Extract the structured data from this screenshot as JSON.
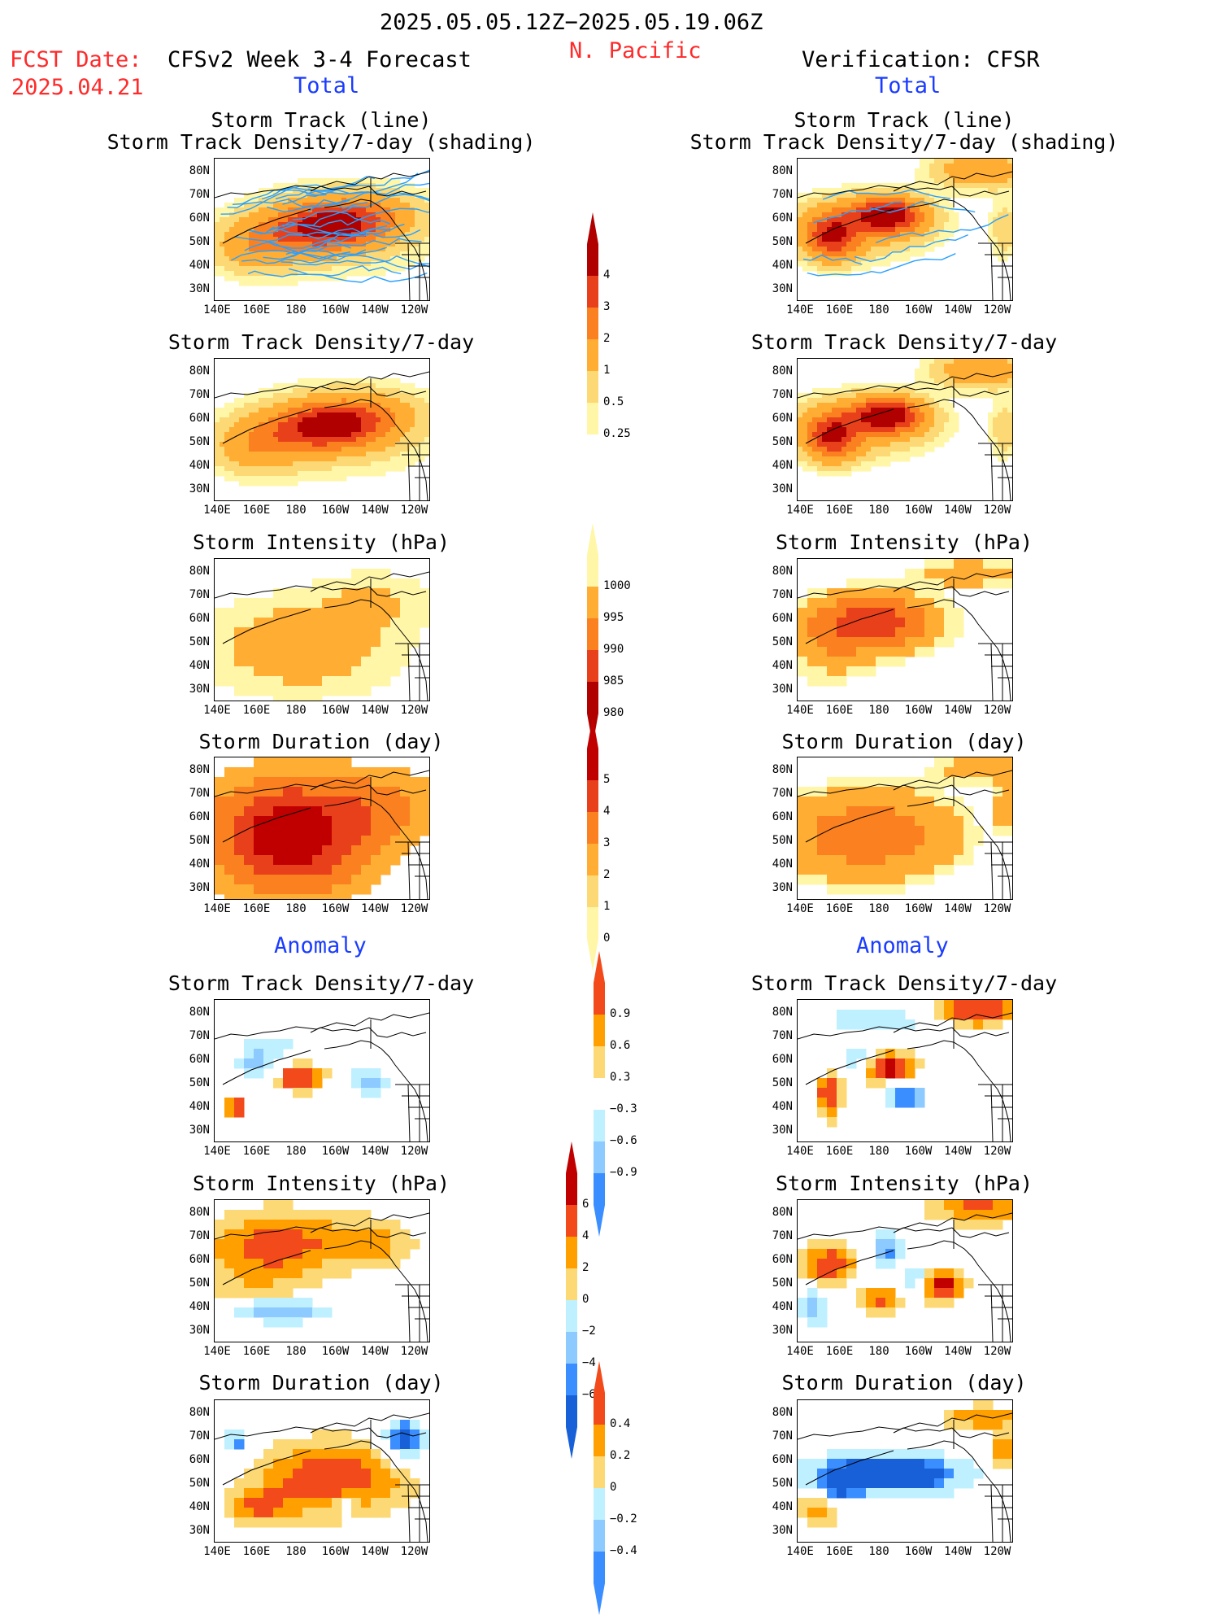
{
  "header": {
    "period": "2025.05.05.12Z−2025.05.19.06Z",
    "region": "N. Pacific",
    "fcst_label": "FCST Date:",
    "fcst_date": "2025.04.21",
    "left_title": "CFSv2 Week 3-4 Forecast",
    "right_title": "Verification: CFSR",
    "total_left": "Total",
    "total_right": "Total",
    "anomaly_left": "Anomaly",
    "anomaly_right": "Anomaly"
  },
  "titles": {
    "st_line": "Storm Track (line)",
    "st_shade": "Storm Track Density/7-day (shading)",
    "density": "Storm Track Density/7-day",
    "intensity": "Storm Intensity (hPa)",
    "duration": "Storm Duration (day)"
  },
  "axes": {
    "lat_ticks": [
      "80N",
      "70N",
      "60N",
      "50N",
      "40N",
      "30N"
    ],
    "lon_ticks": [
      "140E",
      "160E",
      "180",
      "160W",
      "140W",
      "120W"
    ]
  },
  "colorbars": {
    "density_total": [
      "4",
      "3",
      "2",
      "1",
      "0.5",
      "0.25"
    ],
    "intensity_total": [
      "1000",
      "995",
      "990",
      "985",
      "980"
    ],
    "duration_total": [
      "5",
      "4",
      "3",
      "2",
      "1",
      "0"
    ],
    "density_anom": [
      "0.9",
      "0.6",
      "0.3",
      "−0.3",
      "−0.6",
      "−0.9"
    ],
    "intensity_anom": [
      "6",
      "4",
      "2",
      "0",
      "−2",
      "−4",
      "−6"
    ],
    "duration_anom": [
      "0.4",
      "0.2",
      "0",
      "−0.2",
      "−0.4"
    ]
  },
  "colors": {
    "warm_scale": [
      "#fff6a8",
      "#fcd975",
      "#ffad33",
      "#fa8020",
      "#e8401a",
      "#b00000"
    ],
    "anom_pos": [
      "#fcd975",
      "#ffa000",
      "#f24a1a",
      "#c00000"
    ],
    "anom_neg": [
      "#bff0ff",
      "#8ccaff",
      "#3a8eff",
      "#1860d8"
    ],
    "track_line": "#2aa0ff",
    "header_red": "#ff2a2a",
    "header_blue": "#1a3cff"
  }
}
